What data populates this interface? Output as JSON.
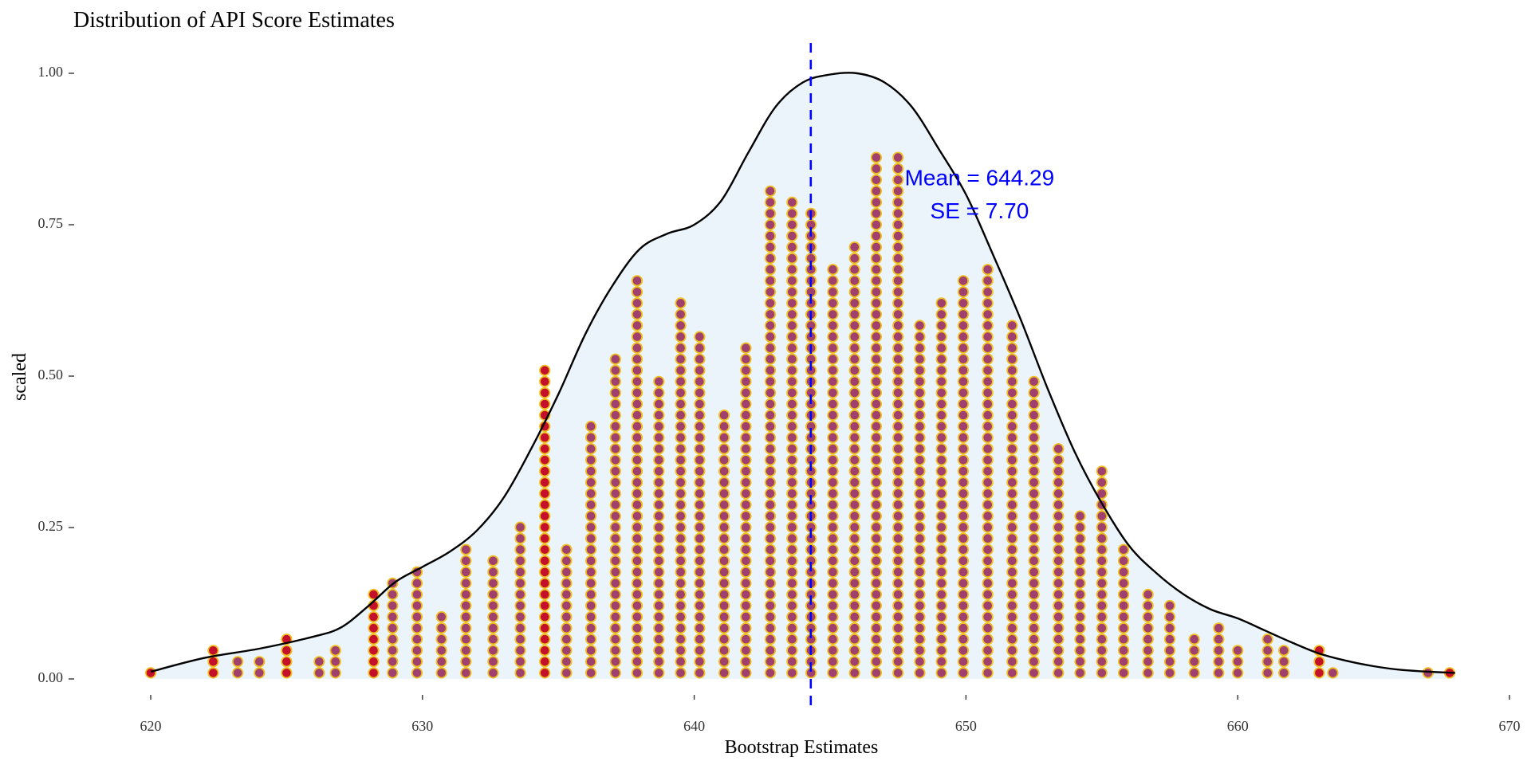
{
  "chart_data": {
    "type": "dotplot",
    "title": "Distribution of API Score Estimates",
    "xlabel": "Bootstrap Estimates",
    "ylabel": "scaled",
    "xlim": [
      620,
      670
    ],
    "ylim": [
      0,
      1.0
    ],
    "x_ticks": [
      620,
      630,
      640,
      650,
      660,
      670
    ],
    "y_ticks": [
      "0.00",
      "0.25",
      "0.50",
      "0.75",
      "1.00"
    ],
    "grid": false,
    "mean_line": {
      "x": 644.29,
      "color": "#0000ff",
      "style": "dashed"
    },
    "annotations": [
      {
        "text": "Mean = 644.29",
        "x": 650.5,
        "y": 0.825,
        "color": "#0000ff"
      },
      {
        "text": "SE = 7.70",
        "x": 650.5,
        "y": 0.77,
        "color": "#0000ff"
      }
    ],
    "density": {
      "fill": "#eaf4fa",
      "stroke": "#000000",
      "points": [
        [
          620,
          0.012
        ],
        [
          622,
          0.035
        ],
        [
          624,
          0.05
        ],
        [
          626,
          0.07
        ],
        [
          627,
          0.085
        ],
        [
          628,
          0.12
        ],
        [
          629,
          0.16
        ],
        [
          630,
          0.185
        ],
        [
          631,
          0.21
        ],
        [
          632,
          0.245
        ],
        [
          633,
          0.3
        ],
        [
          634,
          0.38
        ],
        [
          635,
          0.47
        ],
        [
          636,
          0.57
        ],
        [
          637,
          0.65
        ],
        [
          638,
          0.71
        ],
        [
          639,
          0.735
        ],
        [
          640,
          0.75
        ],
        [
          641,
          0.79
        ],
        [
          642,
          0.87
        ],
        [
          643,
          0.945
        ],
        [
          644,
          0.985
        ],
        [
          645,
          0.998
        ],
        [
          646,
          1.0
        ],
        [
          647,
          0.985
        ],
        [
          648,
          0.945
        ],
        [
          649,
          0.875
        ],
        [
          650,
          0.8
        ],
        [
          651,
          0.7
        ],
        [
          652,
          0.595
        ],
        [
          653,
          0.48
        ],
        [
          654,
          0.375
        ],
        [
          655,
          0.29
        ],
        [
          656,
          0.22
        ],
        [
          657,
          0.175
        ],
        [
          658,
          0.14
        ],
        [
          659,
          0.115
        ],
        [
          660,
          0.1
        ],
        [
          661,
          0.08
        ],
        [
          662,
          0.06
        ],
        [
          663,
          0.042
        ],
        [
          664,
          0.03
        ],
        [
          665,
          0.021
        ],
        [
          666,
          0.015
        ],
        [
          667,
          0.012
        ],
        [
          668,
          0.01
        ]
      ]
    },
    "dots": {
      "fill": "#a0406e",
      "stroke": "#f0c020",
      "highlight_fill": "#c4102a",
      "stack_step": 0.0185,
      "columns": [
        {
          "x": 620.0,
          "count": 1,
          "highlight": true
        },
        {
          "x": 622.3,
          "count": 3,
          "highlight": true
        },
        {
          "x": 623.2,
          "count": 2
        },
        {
          "x": 624.0,
          "count": 2
        },
        {
          "x": 625.0,
          "count": 4,
          "highlight": true
        },
        {
          "x": 626.2,
          "count": 2
        },
        {
          "x": 626.8,
          "count": 3
        },
        {
          "x": 628.2,
          "count": 8,
          "highlight": true
        },
        {
          "x": 628.9,
          "count": 9
        },
        {
          "x": 629.8,
          "count": 10
        },
        {
          "x": 630.7,
          "count": 6
        },
        {
          "x": 631.6,
          "count": 12
        },
        {
          "x": 632.6,
          "count": 11
        },
        {
          "x": 633.6,
          "count": 14
        },
        {
          "x": 634.5,
          "count": 28,
          "highlight": true
        },
        {
          "x": 635.3,
          "count": 12
        },
        {
          "x": 636.2,
          "count": 23
        },
        {
          "x": 637.1,
          "count": 29
        },
        {
          "x": 637.9,
          "count": 36
        },
        {
          "x": 638.7,
          "count": 27
        },
        {
          "x": 639.5,
          "count": 34
        },
        {
          "x": 640.2,
          "count": 31
        },
        {
          "x": 641.1,
          "count": 24
        },
        {
          "x": 641.9,
          "count": 30
        },
        {
          "x": 642.8,
          "count": 44
        },
        {
          "x": 643.6,
          "count": 43
        },
        {
          "x": 644.3,
          "count": 42
        },
        {
          "x": 645.1,
          "count": 37
        },
        {
          "x": 645.9,
          "count": 39
        },
        {
          "x": 646.7,
          "count": 47
        },
        {
          "x": 647.5,
          "count": 47
        },
        {
          "x": 648.3,
          "count": 32
        },
        {
          "x": 649.1,
          "count": 34
        },
        {
          "x": 649.9,
          "count": 36
        },
        {
          "x": 650.8,
          "count": 37
        },
        {
          "x": 651.7,
          "count": 32
        },
        {
          "x": 652.5,
          "count": 27
        },
        {
          "x": 653.4,
          "count": 21
        },
        {
          "x": 654.2,
          "count": 15
        },
        {
          "x": 655.0,
          "count": 19
        },
        {
          "x": 655.8,
          "count": 12
        },
        {
          "x": 656.7,
          "count": 8
        },
        {
          "x": 657.5,
          "count": 7
        },
        {
          "x": 658.4,
          "count": 4
        },
        {
          "x": 659.3,
          "count": 5
        },
        {
          "x": 660.0,
          "count": 3
        },
        {
          "x": 661.1,
          "count": 4
        },
        {
          "x": 661.7,
          "count": 3
        },
        {
          "x": 663.0,
          "count": 3,
          "highlight": true
        },
        {
          "x": 663.5,
          "count": 1
        },
        {
          "x": 667.0,
          "count": 1
        },
        {
          "x": 667.8,
          "count": 1,
          "highlight": true
        }
      ]
    }
  }
}
